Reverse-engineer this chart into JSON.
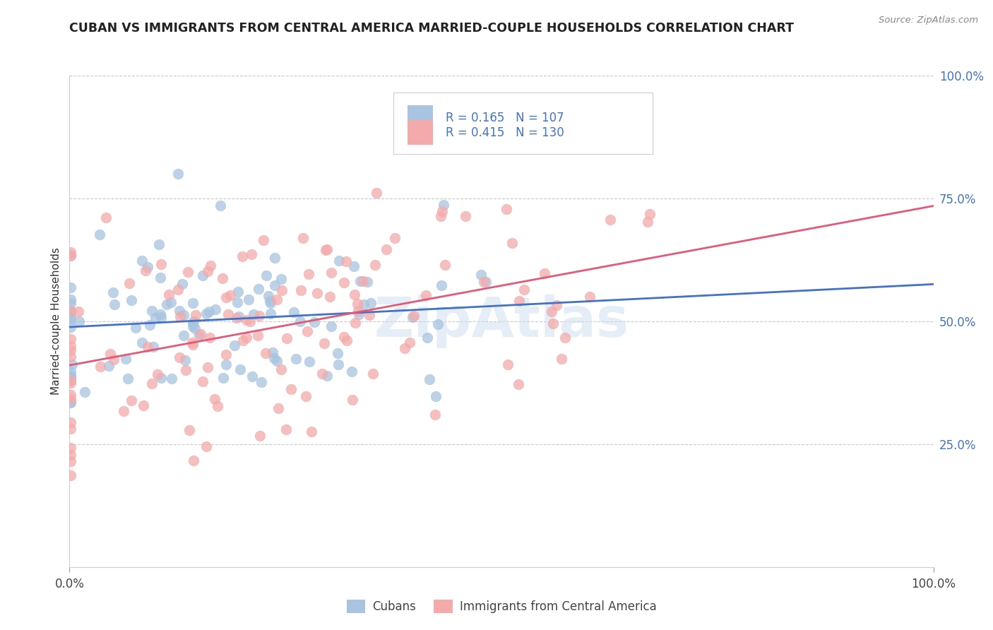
{
  "title": "CUBAN VS IMMIGRANTS FROM CENTRAL AMERICA MARRIED-COUPLE HOUSEHOLDS CORRELATION CHART",
  "source": "Source: ZipAtlas.com",
  "ylabel": "Married-couple Households",
  "legend_labels": [
    "Cubans",
    "Immigrants from Central America"
  ],
  "blue_color": "#A8C4E0",
  "pink_color": "#F4AAAA",
  "blue_line_color": "#4472C4",
  "pink_line_color": "#E05A7A",
  "blue_R": 0.165,
  "pink_R": 0.415,
  "N_blue": 107,
  "N_pink": 130,
  "xlim": [
    0,
    1
  ],
  "ylim": [
    0,
    1
  ],
  "background_color": "#FFFFFF",
  "grid_color": "#C8C8C8",
  "watermark_color": "#D0DFF0",
  "title_color": "#222222",
  "source_color": "#888888",
  "axis_label_color": "#333333",
  "tick_color_right": "#4472C4",
  "legend_r_color": "#4472C4",
  "legend_n_color": "#E05A7A"
}
